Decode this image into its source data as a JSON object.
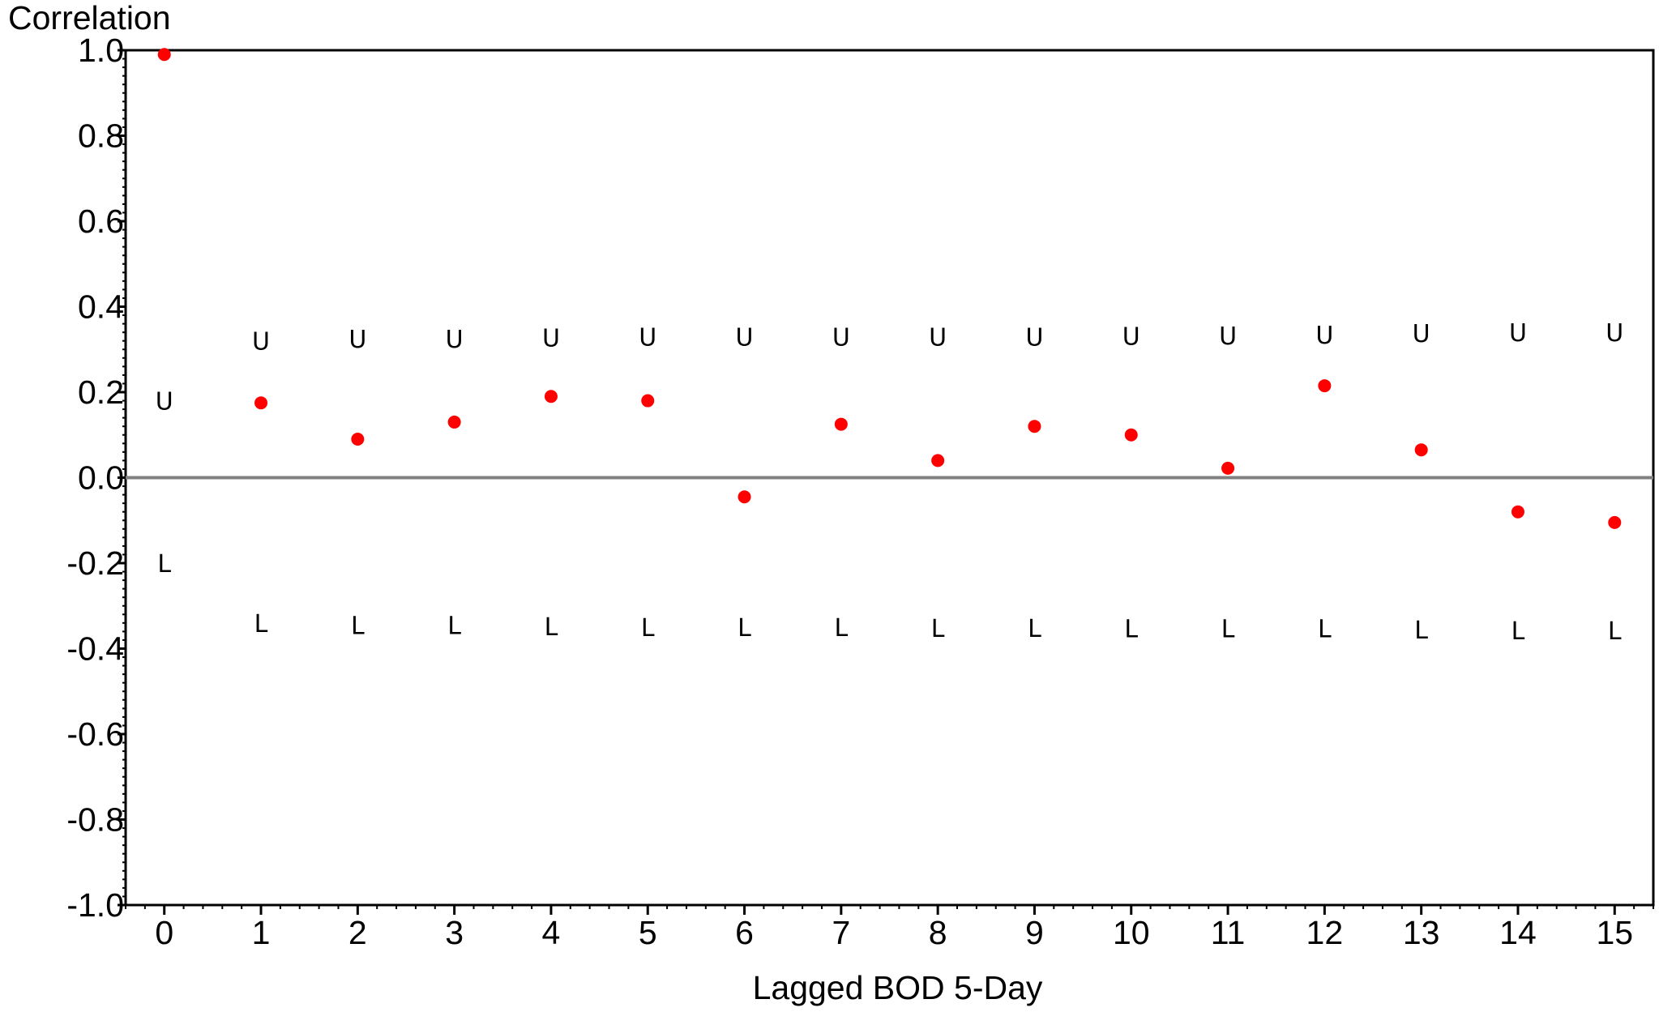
{
  "chart_data": {
    "type": "scatter",
    "ylabel": "Correlation",
    "xlabel": "Lagged BOD 5-Day",
    "xlim": [
      -0.4,
      15.4
    ],
    "ylim": [
      -1.0,
      1.0
    ],
    "x_ticks": [
      0,
      1,
      2,
      3,
      4,
      5,
      6,
      7,
      8,
      9,
      10,
      11,
      12,
      13,
      14,
      15
    ],
    "y_ticks": [
      "1.0",
      "0.8",
      "0.6",
      "0.4",
      "0.2",
      "0.0",
      "-0.2",
      "-0.4",
      "-0.6",
      "-0.8",
      "-1.0"
    ],
    "grid": false,
    "reference_line_y": 0,
    "series": [
      {
        "marker": "circle",
        "color": "#ff0000",
        "x": [
          0,
          1,
          2,
          3,
          4,
          5,
          6,
          7,
          8,
          9,
          10,
          11,
          12,
          13,
          14,
          15
        ],
        "values": [
          0.99,
          0.175,
          0.09,
          0.13,
          0.19,
          0.18,
          -0.045,
          0.125,
          0.04,
          0.12,
          0.1,
          0.022,
          0.215,
          0.065,
          -0.08,
          -0.105
        ]
      }
    ],
    "upper_bound": {
      "marker_label": "U",
      "x": [
        0,
        1,
        2,
        3,
        4,
        5,
        6,
        7,
        8,
        9,
        10,
        11,
        12,
        13,
        14,
        15
      ],
      "values": [
        0.18,
        0.32,
        0.325,
        0.325,
        0.328,
        0.33,
        0.33,
        0.33,
        0.33,
        0.33,
        0.332,
        0.333,
        0.335,
        0.338,
        0.34,
        0.34
      ]
    },
    "lower_bound": {
      "marker_label": "L",
      "x": [
        0,
        1,
        2,
        3,
        4,
        5,
        6,
        7,
        8,
        9,
        10,
        11,
        12,
        13,
        14,
        15
      ],
      "values": [
        -0.2,
        -0.34,
        -0.345,
        -0.345,
        -0.348,
        -0.35,
        -0.35,
        -0.35,
        -0.352,
        -0.352,
        -0.353,
        -0.353,
        -0.353,
        -0.355,
        -0.357,
        -0.357
      ]
    },
    "colors": {
      "points": "#ff0000",
      "zero_line": "#808080",
      "axes": "#000000"
    }
  }
}
